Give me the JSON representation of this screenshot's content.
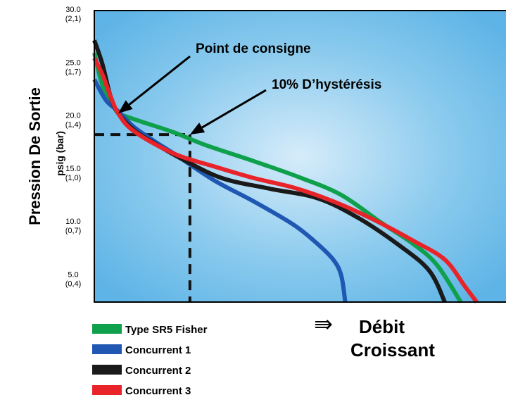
{
  "chart_data": {
    "type": "line",
    "title": "",
    "ylabel": "Pression De Sortie",
    "ylabel_units": "psig (bar)",
    "xlabel_line1": "Débit",
    "xlabel_line2": "Croissant",
    "xlabel_arrow": "⇛",
    "ylim": [
      2.5,
      30
    ],
    "xlim": [
      0,
      100
    ],
    "grid": false,
    "legend_position": "bottom-left",
    "y_ticks": [
      {
        "value": 30,
        "label": "30.0",
        "sub": "(2,1)"
      },
      {
        "value": 25,
        "label": "25.0",
        "sub": "(1,7)"
      },
      {
        "value": 20,
        "label": "20.0",
        "sub": "(1,4)"
      },
      {
        "value": 15,
        "label": "15.0",
        "sub": "(1,0)"
      },
      {
        "value": 10,
        "label": "10.0",
        "sub": "(0,7)"
      },
      {
        "value": 5,
        "label": "5.0",
        "sub": "(0,4)"
      }
    ],
    "series": [
      {
        "name": "Type SR5 Fisher",
        "color": "#0fa04b",
        "points": [
          [
            0,
            26
          ],
          [
            2,
            23
          ],
          [
            4,
            21.5
          ],
          [
            6,
            20.3
          ],
          [
            8,
            20
          ],
          [
            12,
            19.5
          ],
          [
            20,
            18.5
          ],
          [
            28,
            17.3
          ],
          [
            40,
            15.8
          ],
          [
            52,
            14.2
          ],
          [
            62,
            12.6
          ],
          [
            72,
            10
          ],
          [
            80,
            8
          ],
          [
            86,
            6
          ],
          [
            92,
            2.5
          ]
        ]
      },
      {
        "name": "Concurrent 1",
        "color": "#1f57b3",
        "points": [
          [
            0,
            23.5
          ],
          [
            3,
            21.5
          ],
          [
            6,
            20.5
          ],
          [
            10,
            19
          ],
          [
            15,
            17.7
          ],
          [
            20,
            16.5
          ],
          [
            30,
            14
          ],
          [
            40,
            12
          ],
          [
            50,
            9.8
          ],
          [
            56,
            8
          ],
          [
            60,
            6.5
          ],
          [
            62,
            5
          ],
          [
            63,
            2.5
          ]
        ]
      },
      {
        "name": "Concurrent 2",
        "color": "#1a1a1a",
        "points": [
          [
            0,
            27.2
          ],
          [
            2,
            25
          ],
          [
            4,
            22
          ],
          [
            6,
            20.3
          ],
          [
            10,
            18.7
          ],
          [
            15,
            17.5
          ],
          [
            22,
            16
          ],
          [
            32,
            14.2
          ],
          [
            44,
            13.2
          ],
          [
            56,
            12.3
          ],
          [
            66,
            10.5
          ],
          [
            76,
            8
          ],
          [
            84,
            5.5
          ],
          [
            88,
            2.5
          ]
        ]
      },
      {
        "name": "Concurrent 3",
        "color": "#e8242a",
        "points": [
          [
            0,
            25.5
          ],
          [
            2,
            24
          ],
          [
            4,
            22
          ],
          [
            6,
            20.3
          ],
          [
            10,
            18.6
          ],
          [
            20,
            16.5
          ],
          [
            30,
            15.3
          ],
          [
            40,
            14.2
          ],
          [
            50,
            13.3
          ],
          [
            60,
            12
          ],
          [
            70,
            10.3
          ],
          [
            80,
            8.3
          ],
          [
            88,
            6.5
          ],
          [
            93,
            4
          ],
          [
            96,
            2.5
          ]
        ]
      }
    ],
    "annotations": [
      {
        "text": "Point de consigne",
        "target": [
          6,
          20.3
        ]
      },
      {
        "text": "10% D’hystérésis",
        "target": [
          24,
          18.3
        ]
      }
    ],
    "setpoint_reference": {
      "pressure": 18.3,
      "flow": 24
    }
  }
}
